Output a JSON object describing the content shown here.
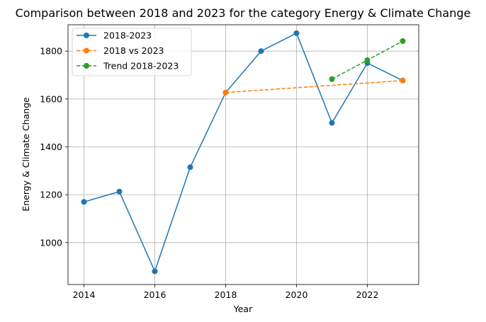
{
  "chart_data": {
    "type": "line",
    "title": "Comparison between 2018 and 2023 for the category Energy & Climate Change",
    "xlabel": "Year",
    "ylabel": "Energy & Climate Change",
    "xlim": [
      2013.55,
      2023.45
    ],
    "ylim": [
      825,
      1910
    ],
    "x_ticks": [
      2014,
      2016,
      2018,
      2020,
      2022
    ],
    "y_ticks": [
      1000,
      1200,
      1400,
      1600,
      1800
    ],
    "grid": true,
    "legend_position": "upper-left",
    "series": [
      {
        "name": "2018-2023",
        "color": "#1f77b4",
        "line_style": "solid",
        "marker": "circle",
        "x": [
          2014,
          2015,
          2016,
          2017,
          2018,
          2019,
          2020,
          2021,
          2022,
          2023
        ],
        "y": [
          1170,
          1213,
          880,
          1315,
          1627,
          1800,
          1875,
          1500,
          1750,
          1677
        ]
      },
      {
        "name": "2018 vs 2023",
        "color": "#ff7f0e",
        "line_style": "dashed",
        "marker": "circle",
        "x": [
          2018,
          2023
        ],
        "y": [
          1627,
          1677
        ]
      },
      {
        "name": "Trend 2018-2023",
        "color": "#2ca02c",
        "line_style": "dashed",
        "marker": "circle",
        "x": [
          2021,
          2022,
          2023
        ],
        "y": [
          1683,
          1762,
          1842
        ]
      }
    ]
  }
}
